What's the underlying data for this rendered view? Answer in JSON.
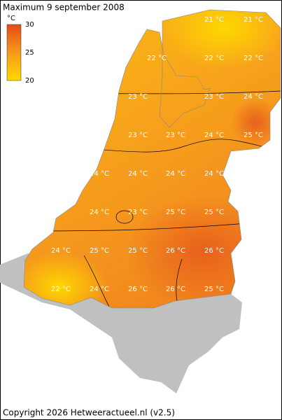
{
  "title": "Maximum 9 september 2008",
  "legend": {
    "unit": "°C",
    "ticks": [
      30,
      25,
      20
    ]
  },
  "labels": [
    "21 °C",
    "21 °C",
    "22 °C",
    "22 °C",
    "22 °C",
    "23 °C",
    "23 °C",
    "24 °C",
    "23 °C",
    "23 °C",
    "24 °C",
    "25 °C",
    "24 °C",
    "24 °C",
    "24 °C",
    "24 °C",
    "24 °C",
    "23 °C",
    "25 °C",
    "25 °C",
    "24 °C",
    "25 °C",
    "25 °C",
    "26 °C",
    "26 °C",
    "22 °C",
    "24 °C",
    "26 °C",
    "26 °C",
    "25 °C"
  ],
  "copyright": "Copyright 2026 Hetweeractueel.nl (v2.5)"
}
